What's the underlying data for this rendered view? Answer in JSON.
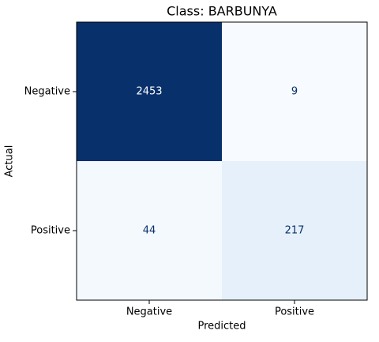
{
  "chart_data": {
    "type": "heatmap",
    "title": "Class: BARBUNYA",
    "x_label": "Predicted",
    "y_label": "Actual",
    "x_categories": [
      "Negative",
      "Positive"
    ],
    "y_categories": [
      "Negative",
      "Positive"
    ],
    "values": [
      [
        2453,
        9
      ],
      [
        44,
        217
      ]
    ],
    "colormap": [
      "#f7fbff",
      "#deebf7",
      "#c6dbef",
      "#9ecae1",
      "#6baed6",
      "#4292c6",
      "#2171b5",
      "#08519c",
      "#08306b"
    ]
  }
}
